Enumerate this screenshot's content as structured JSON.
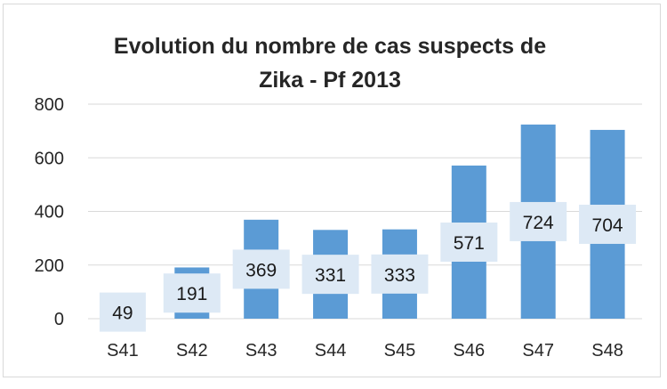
{
  "chart_data": {
    "type": "bar",
    "title_lines": [
      "Evolution du nombre de cas suspects de",
      "Zika - Pf 2013"
    ],
    "categories": [
      "S41",
      "S42",
      "S43",
      "S44",
      "S45",
      "S46",
      "S47",
      "S48"
    ],
    "values": [
      49,
      191,
      369,
      331,
      333,
      571,
      724,
      704
    ],
    "data_labels": [
      "49",
      "191",
      "369",
      "331",
      "333",
      "571",
      "724",
      "704"
    ],
    "yticks": [
      "0",
      "200",
      "400",
      "600",
      "800"
    ],
    "ylim": [
      0,
      800
    ],
    "grid": true,
    "bar_color": "#5b9bd5",
    "label_box_color": "#dde9f5",
    "grid_color": "#d9d9d9"
  }
}
